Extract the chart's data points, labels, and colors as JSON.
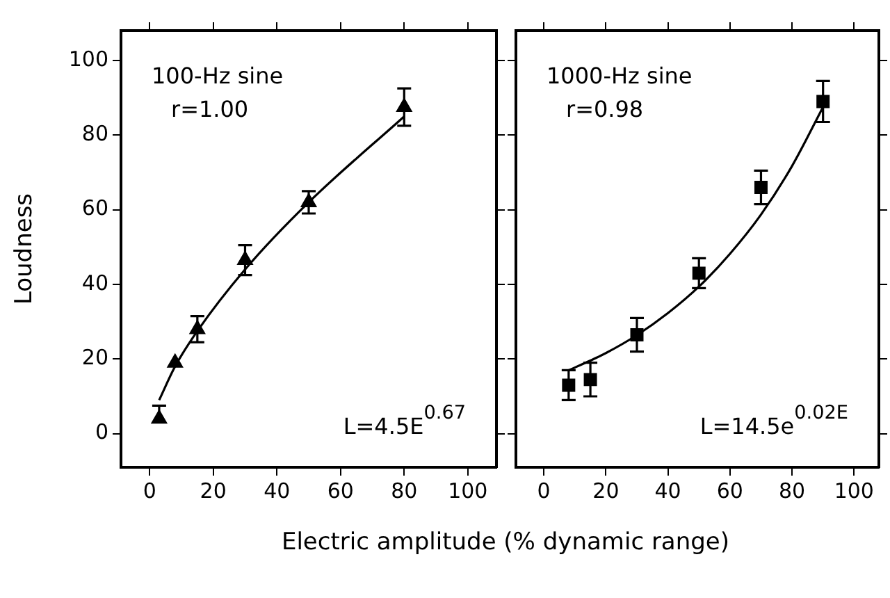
{
  "chart_data": [
    {
      "type": "scatter",
      "ylabel": "Loudness",
      "xlabel": "Electric amplitude (% dynamic range)",
      "xlim": [
        -9,
        109
      ],
      "xticks": [
        0,
        20,
        40,
        60,
        80,
        100
      ],
      "ylim": [
        -9,
        108
      ],
      "yticks": [
        0,
        20,
        40,
        60,
        80,
        100
      ],
      "grid": false,
      "legend": false,
      "annotations": [
        "100-Hz sine",
        "r=1.00",
        "L=4.5E$^{0.67}$"
      ],
      "series": [
        {
          "type": "scatter",
          "marker": "triangle",
          "color": "#000000",
          "x": [
            3,
            8,
            15,
            30,
            50,
            80
          ],
          "values": [
            4,
            19,
            28,
            46.5,
            62,
            87.5
          ],
          "errors": [
            [
              4,
              7.5
            ],
            null,
            3.5,
            4,
            3,
            5
          ]
        },
        {
          "type": "line",
          "marker": "none",
          "color": "#000000",
          "x": [
            3,
            8,
            15,
            30,
            50,
            80
          ],
          "values": [
            9,
            18,
            27.5,
            44,
            62,
            85
          ]
        }
      ]
    },
    {
      "type": "scatter",
      "xlim": [
        -9,
        108
      ],
      "xticks": [
        0,
        20,
        40,
        60,
        80,
        100
      ],
      "ylim": [
        -9,
        108
      ],
      "yticks": [
        0,
        20,
        40,
        60,
        80,
        100
      ],
      "tick_labels": "x",
      "grid": false,
      "legend": false,
      "annotations": [
        "1000-Hz sine",
        "r=0.98",
        "L=14.5e$^{0.02E}$"
      ],
      "series": [
        {
          "type": "scatter",
          "marker": "square",
          "color": "#000000",
          "x": [
            8,
            15,
            30,
            50,
            70,
            90
          ],
          "values": [
            13,
            14.5,
            26.5,
            43,
            66,
            89
          ],
          "errors": [
            4,
            4.5,
            4.5,
            4,
            4.5,
            5.5
          ]
        },
        {
          "type": "line",
          "marker": "none",
          "color": "#000000",
          "x": [
            8,
            15,
            20,
            30,
            40,
            50,
            60,
            70,
            80,
            90
          ],
          "values": [
            17,
            19.6,
            21.6,
            26.4,
            32.3,
            39.4,
            48.2,
            58.7,
            71.7,
            87.5
          ]
        }
      ]
    }
  ]
}
